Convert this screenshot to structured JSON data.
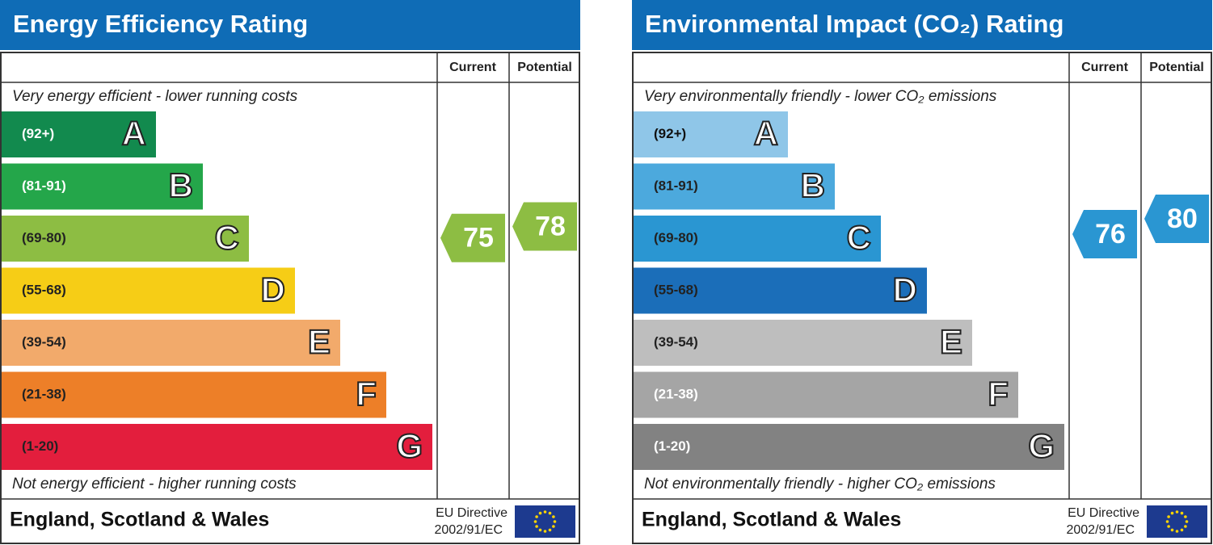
{
  "chart_data": [
    {
      "type": "epc",
      "title": "Energy Efficiency Rating",
      "header_color": "#0f6cb6",
      "col_current": "Current",
      "col_potential": "Potential",
      "top_text": "Very energy efficient - lower running costs",
      "bottom_text": "Not energy efficient - higher running costs",
      "bands": [
        {
          "range": "(92+)",
          "letter": "A",
          "color": "#128a4e",
          "text_color": "#ffffff"
        },
        {
          "range": "(81-91)",
          "letter": "B",
          "color": "#24a64a",
          "text_color": "#ffffff"
        },
        {
          "range": "(69-80)",
          "letter": "C",
          "color": "#8dbd43",
          "text_color": "#222222"
        },
        {
          "range": "(55-68)",
          "letter": "D",
          "color": "#f6cd16",
          "text_color": "#222222"
        },
        {
          "range": "(39-54)",
          "letter": "E",
          "color": "#f2aa6b",
          "text_color": "#222222"
        },
        {
          "range": "(21-38)",
          "letter": "F",
          "color": "#ed7f28",
          "text_color": "#222222"
        },
        {
          "range": "(1-20)",
          "letter": "G",
          "color": "#e31e3d",
          "text_color": "#222222"
        }
      ],
      "current": {
        "value": 75,
        "color": "#8dbd43"
      },
      "potential": {
        "value": 78,
        "color": "#8dbd43"
      },
      "footer": "England, Scotland & Wales",
      "directive": [
        "EU Directive",
        "2002/91/EC"
      ]
    },
    {
      "type": "epc",
      "title": "Environmental Impact (CO₂) Rating",
      "header_color": "#0f6cb6",
      "col_current": "Current",
      "col_potential": "Potential",
      "top_text": "Very environmentally friendly - lower CO₂ emissions",
      "bottom_text": "Not environmentally friendly - higher CO₂ emissions",
      "bands": [
        {
          "range": "(92+)",
          "letter": "A",
          "color": "#8fc6e8",
          "text_color": "#111111"
        },
        {
          "range": "(81-91)",
          "letter": "B",
          "color": "#4ca9dd",
          "text_color": "#222222"
        },
        {
          "range": "(69-80)",
          "letter": "C",
          "color": "#2a96d2",
          "text_color": "#222222"
        },
        {
          "range": "(55-68)",
          "letter": "D",
          "color": "#1b6eb9",
          "text_color": "#222222"
        },
        {
          "range": "(39-54)",
          "letter": "E",
          "color": "#bebebe",
          "text_color": "#222222"
        },
        {
          "range": "(21-38)",
          "letter": "F",
          "color": "#a5a5a5",
          "text_color": "#ffffff"
        },
        {
          "range": "(1-20)",
          "letter": "G",
          "color": "#828282",
          "text_color": "#ffffff"
        }
      ],
      "current": {
        "value": 76,
        "color": "#2a96d2"
      },
      "potential": {
        "value": 80,
        "color": "#2a96d2"
      },
      "footer": "England, Scotland & Wales",
      "directive": [
        "EU Directive",
        "2002/91/EC"
      ]
    }
  ]
}
